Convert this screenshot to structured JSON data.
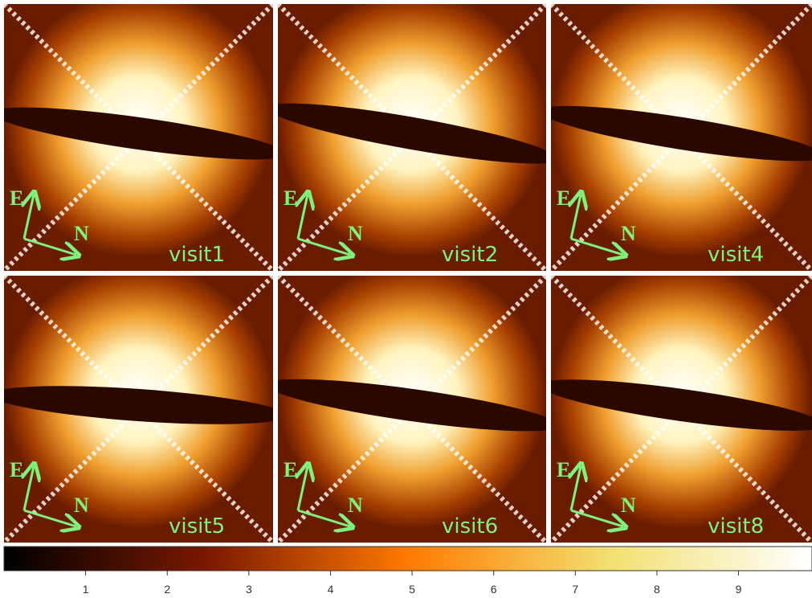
{
  "panels": [
    {
      "label": "visit1",
      "east": "E",
      "north": "N"
    },
    {
      "label": "visit2",
      "east": "E",
      "north": "N"
    },
    {
      "label": "visit4",
      "east": "E",
      "north": "N"
    },
    {
      "label": "visit5",
      "east": "E",
      "north": "N"
    },
    {
      "label": "visit6",
      "east": "E",
      "north": "N"
    },
    {
      "label": "visit8",
      "east": "E",
      "north": "N"
    }
  ],
  "colorbar": {
    "range": [
      0,
      9.9
    ],
    "ticks": [
      1,
      2,
      3,
      4,
      5,
      6,
      7,
      8,
      9
    ]
  }
}
